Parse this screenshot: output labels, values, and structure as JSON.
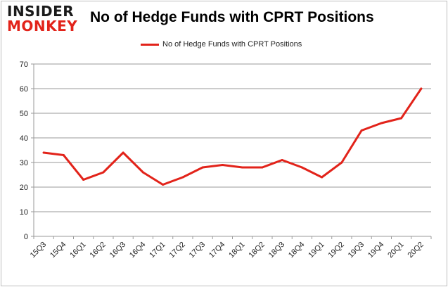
{
  "logo": {
    "line1": "INSIDER",
    "line2": "MONKEY"
  },
  "chart_data": {
    "type": "line",
    "title": "No of Hedge Funds with CPRT Positions",
    "xlabel": "",
    "ylabel": "",
    "ylim": [
      0,
      70
    ],
    "yticks": [
      0,
      10,
      20,
      30,
      40,
      50,
      60,
      70
    ],
    "grid": true,
    "legend_position": "top-center",
    "categories": [
      "15Q3",
      "15Q4",
      "16Q1",
      "16Q2",
      "16Q3",
      "16Q4",
      "17Q1",
      "17Q2",
      "17Q3",
      "17Q4",
      "18Q1",
      "18Q2",
      "18Q3",
      "18Q4",
      "19Q1",
      "19Q2",
      "19Q3",
      "19Q4",
      "20Q1",
      "20Q2"
    ],
    "series": [
      {
        "name": "No of Hedge Funds with CPRT Positions",
        "color": "#e2231a",
        "values": [
          34,
          33,
          23,
          26,
          34,
          26,
          21,
          24,
          28,
          29,
          28,
          28,
          31,
          28,
          24,
          30,
          43,
          46,
          48,
          60
        ]
      }
    ]
  }
}
